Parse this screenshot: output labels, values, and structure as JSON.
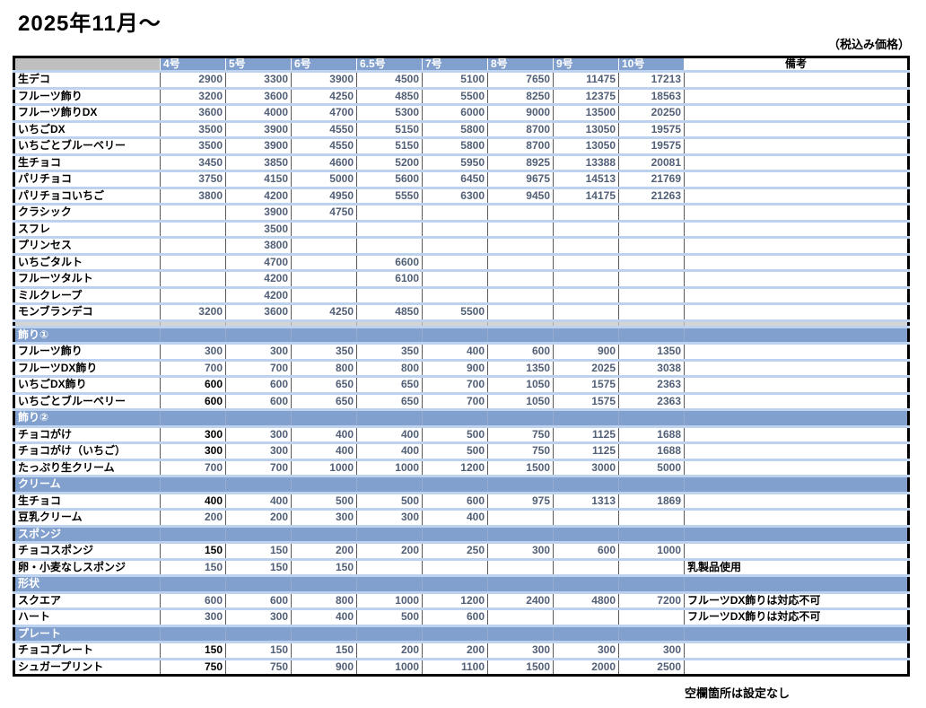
{
  "title": "2025年11月～",
  "tax_note": "（税込み価格）",
  "footer_note": "空欄箇所は設定なし",
  "colors": {
    "header_blue": "#82A0CE",
    "row_separator_blue": "#BCD2EE",
    "corner_gray": "#BFBFBF",
    "spacer_gray": "#D4D4D4",
    "number_text": "#515F77",
    "emphasis_number_text": "#000000"
  },
  "table": {
    "size_headers": [
      "4号",
      "5号",
      "6号",
      "6.5号",
      "7号",
      "8号",
      "9号",
      "10号"
    ],
    "remark_header": "備考",
    "rows": [
      {
        "kind": "item",
        "label": "生デコ",
        "values": [
          "2900",
          "3300",
          "3900",
          "4500",
          "5100",
          "7650",
          "11475",
          "17213"
        ],
        "remark": "",
        "first_black": false
      },
      {
        "kind": "item",
        "label": "フルーツ飾り",
        "values": [
          "3200",
          "3600",
          "4250",
          "4850",
          "5500",
          "8250",
          "12375",
          "18563"
        ],
        "remark": "",
        "first_black": false
      },
      {
        "kind": "item",
        "label": "フルーツ飾りDX",
        "values": [
          "3600",
          "4000",
          "4700",
          "5300",
          "6000",
          "9000",
          "13500",
          "20250"
        ],
        "remark": "",
        "first_black": false
      },
      {
        "kind": "item",
        "label": "いちごDX",
        "values": [
          "3500",
          "3900",
          "4550",
          "5150",
          "5800",
          "8700",
          "13050",
          "19575"
        ],
        "remark": "",
        "first_black": false
      },
      {
        "kind": "item",
        "label": "いちごとブルーベリー",
        "values": [
          "3500",
          "3900",
          "4550",
          "5150",
          "5800",
          "8700",
          "13050",
          "19575"
        ],
        "remark": "",
        "first_black": false
      },
      {
        "kind": "item",
        "label": "生チョコ",
        "values": [
          "3450",
          "3850",
          "4600",
          "5200",
          "5950",
          "8925",
          "13388",
          "20081"
        ],
        "remark": "",
        "first_black": false
      },
      {
        "kind": "item",
        "label": "パリチョコ",
        "values": [
          "3750",
          "4150",
          "5000",
          "5600",
          "6450",
          "9675",
          "14513",
          "21769"
        ],
        "remark": "",
        "first_black": false
      },
      {
        "kind": "item",
        "label": "パリチョコいちご",
        "values": [
          "3800",
          "4200",
          "4950",
          "5550",
          "6300",
          "9450",
          "14175",
          "21263"
        ],
        "remark": "",
        "first_black": false
      },
      {
        "kind": "item",
        "label": "クラシック",
        "values": [
          "",
          "3900",
          "4750",
          "",
          "",
          "",
          "",
          ""
        ],
        "remark": "",
        "first_black": false
      },
      {
        "kind": "item",
        "label": "スフレ",
        "values": [
          "",
          "3500",
          "",
          "",
          "",
          "",
          "",
          ""
        ],
        "remark": "",
        "first_black": false
      },
      {
        "kind": "item",
        "label": "プリンセス",
        "values": [
          "",
          "3800",
          "",
          "",
          "",
          "",
          "",
          ""
        ],
        "remark": "",
        "first_black": false
      },
      {
        "kind": "item",
        "label": "いちごタルト",
        "values": [
          "",
          "4700",
          "",
          "6600",
          "",
          "",
          "",
          ""
        ],
        "remark": "",
        "first_black": false
      },
      {
        "kind": "item",
        "label": "フルーツタルト",
        "values": [
          "",
          "4200",
          "",
          "6100",
          "",
          "",
          "",
          ""
        ],
        "remark": "",
        "first_black": false
      },
      {
        "kind": "item",
        "label": "ミルクレープ",
        "values": [
          "",
          "4200",
          "",
          "",
          "",
          "",
          "",
          ""
        ],
        "remark": "",
        "first_black": false
      },
      {
        "kind": "item",
        "label": "モンブランデコ",
        "values": [
          "3200",
          "3600",
          "4250",
          "4850",
          "5500",
          "",
          "",
          ""
        ],
        "remark": "",
        "first_black": false
      },
      {
        "kind": "spacer"
      },
      {
        "kind": "section",
        "label": "飾り①"
      },
      {
        "kind": "item",
        "label": "フルーツ飾り",
        "values": [
          "300",
          "300",
          "350",
          "350",
          "400",
          "600",
          "900",
          "1350"
        ],
        "remark": "",
        "first_black": false
      },
      {
        "kind": "item",
        "label": "フルーツDX飾り",
        "values": [
          "700",
          "700",
          "800",
          "800",
          "900",
          "1350",
          "2025",
          "3038"
        ],
        "remark": "",
        "first_black": false
      },
      {
        "kind": "item",
        "label": "いちごDX飾り",
        "values": [
          "600",
          "600",
          "650",
          "650",
          "700",
          "1050",
          "1575",
          "2363"
        ],
        "remark": "",
        "first_black": true
      },
      {
        "kind": "item",
        "label": "いちごとブルーベリー",
        "values": [
          "600",
          "600",
          "650",
          "650",
          "700",
          "1050",
          "1575",
          "2363"
        ],
        "remark": "",
        "first_black": true
      },
      {
        "kind": "section",
        "label": "飾り②"
      },
      {
        "kind": "item",
        "label": "チョコがけ",
        "values": [
          "300",
          "300",
          "400",
          "400",
          "500",
          "750",
          "1125",
          "1688"
        ],
        "remark": "",
        "first_black": true
      },
      {
        "kind": "item",
        "label": "チョコがけ（いちご）",
        "values": [
          "300",
          "300",
          "400",
          "400",
          "500",
          "750",
          "1125",
          "1688"
        ],
        "remark": "",
        "first_black": true
      },
      {
        "kind": "item",
        "label": "たっぷり生クリーム",
        "values": [
          "700",
          "700",
          "1000",
          "1000",
          "1200",
          "1500",
          "3000",
          "5000"
        ],
        "remark": "",
        "first_black": false
      },
      {
        "kind": "section",
        "label": "クリーム"
      },
      {
        "kind": "item",
        "label": "生チョコ",
        "values": [
          "400",
          "400",
          "500",
          "500",
          "600",
          "975",
          "1313",
          "1869"
        ],
        "remark": "",
        "first_black": true
      },
      {
        "kind": "item",
        "label": "豆乳クリーム",
        "values": [
          "200",
          "200",
          "300",
          "300",
          "400",
          "",
          "",
          ""
        ],
        "remark": "",
        "first_black": false
      },
      {
        "kind": "section",
        "label": "スポンジ"
      },
      {
        "kind": "item",
        "label": "チョコスポンジ",
        "values": [
          "150",
          "150",
          "200",
          "200",
          "250",
          "300",
          "600",
          "1000"
        ],
        "remark": "",
        "first_black": true
      },
      {
        "kind": "item",
        "label": "卵・小麦なしスポンジ",
        "values": [
          "150",
          "150",
          "150",
          "",
          "",
          "",
          "",
          ""
        ],
        "remark": "乳製品使用",
        "first_black": false
      },
      {
        "kind": "section",
        "label": "形状"
      },
      {
        "kind": "item",
        "label": "スクエア",
        "values": [
          "600",
          "600",
          "800",
          "1000",
          "1200",
          "2400",
          "4800",
          "7200"
        ],
        "remark": "フルーツDX飾りは対応不可",
        "first_black": false
      },
      {
        "kind": "item",
        "label": "ハート",
        "values": [
          "300",
          "300",
          "400",
          "500",
          "600",
          "",
          "",
          ""
        ],
        "remark": "フルーツDX飾りは対応不可",
        "first_black": false
      },
      {
        "kind": "section",
        "label": "プレート"
      },
      {
        "kind": "item",
        "label": "チョコプレート",
        "values": [
          "150",
          "150",
          "150",
          "200",
          "200",
          "300",
          "300",
          "300"
        ],
        "remark": "",
        "first_black": true
      },
      {
        "kind": "item",
        "label": "シュガープリント",
        "values": [
          "750",
          "750",
          "900",
          "1000",
          "1100",
          "1500",
          "2000",
          "2500"
        ],
        "remark": "",
        "first_black": true
      }
    ]
  }
}
